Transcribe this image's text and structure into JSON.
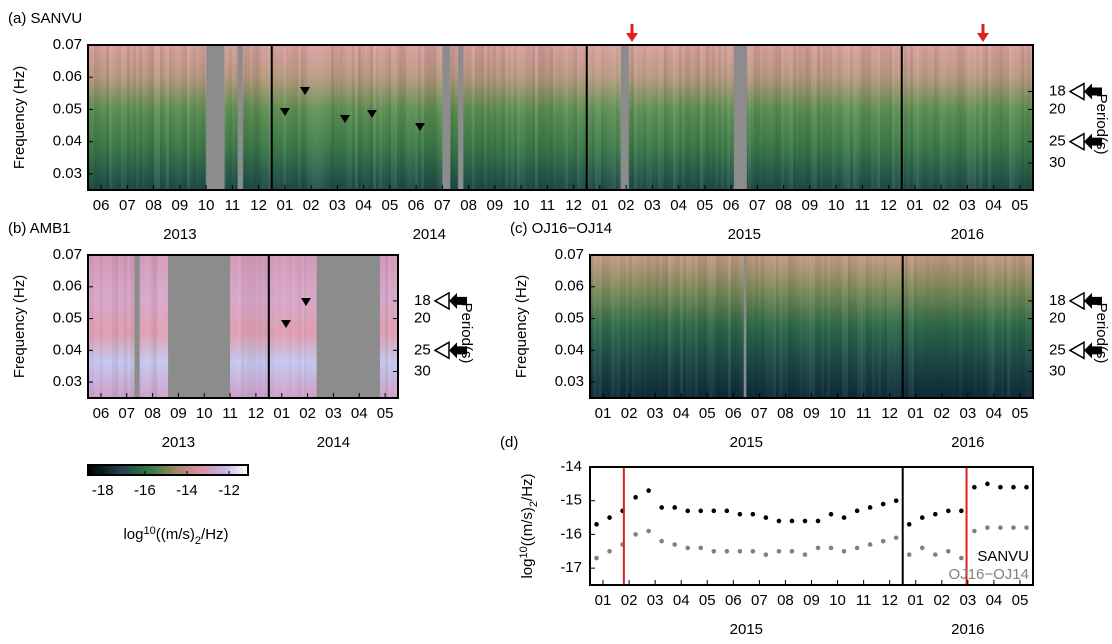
{
  "chart_data": [
    {
      "type": "spectrogram",
      "title": "(a) SANVU",
      "ylabel": "Frequency (Hz)",
      "ylim": [
        0.025,
        0.07
      ],
      "yticks": [
        0.03,
        0.04,
        0.05,
        0.06,
        0.07
      ],
      "y2label": "Period(s)",
      "y2ticks": [
        18,
        20,
        25,
        30
      ],
      "x_groups": [
        {
          "year": "2013",
          "months": [
            "06",
            "07",
            "08",
            "09",
            "10",
            "11",
            "12"
          ]
        },
        {
          "year": "2014",
          "months": [
            "01",
            "02",
            "03",
            "04",
            "05",
            "06",
            "07",
            "08",
            "09",
            "10",
            "11",
            "12"
          ]
        },
        {
          "year": "2015",
          "months": [
            "01",
            "02",
            "03",
            "04",
            "05",
            "06",
            "07",
            "08",
            "09",
            "10",
            "11",
            "12"
          ]
        },
        {
          "year": "2016",
          "months": [
            "01",
            "02",
            "03",
            "04",
            "05"
          ]
        }
      ]
    },
    {
      "type": "spectrogram",
      "title": "(b) AMB1",
      "ylabel": "Frequency (Hz)",
      "ylim": [
        0.025,
        0.07
      ],
      "yticks": [
        0.03,
        0.04,
        0.05,
        0.06,
        0.07
      ],
      "y2label": "Period(s)",
      "y2ticks": [
        18,
        20,
        25,
        30
      ],
      "x_groups": [
        {
          "year": "2013",
          "months": [
            "06",
            "07",
            "08",
            "09",
            "10",
            "11",
            "12"
          ]
        },
        {
          "year": "2014",
          "months": [
            "01",
            "02",
            "03",
            "04",
            "05"
          ]
        }
      ]
    },
    {
      "type": "spectrogram",
      "title": "(c) OJ16−OJ14",
      "ylabel": "Frequency (Hz)",
      "ylim": [
        0.025,
        0.07
      ],
      "yticks": [
        0.03,
        0.04,
        0.05,
        0.06,
        0.07
      ],
      "y2label": "Period(s)",
      "y2ticks": [
        18,
        20,
        25,
        30
      ],
      "x_groups": [
        {
          "year": "2015",
          "months": [
            "01",
            "02",
            "03",
            "04",
            "05",
            "06",
            "07",
            "08",
            "09",
            "10",
            "11",
            "12"
          ]
        },
        {
          "year": "2016",
          "months": [
            "01",
            "02",
            "03",
            "04",
            "05"
          ]
        }
      ]
    },
    {
      "type": "colorbar",
      "clim": [
        -18.7,
        -11.1
      ],
      "ticks": [
        -18,
        -16,
        -14,
        -12
      ],
      "label_parts": [
        "log",
        "10",
        "((m/s)",
        "2",
        "/Hz)"
      ]
    },
    {
      "type": "scatter",
      "title": "(d)",
      "ylabel_parts": [
        "log",
        "10",
        "((m/s)",
        "2",
        "/Hz)"
      ],
      "ylim": [
        -17.5,
        -14
      ],
      "yticks": [
        -14,
        -15,
        -16,
        -17
      ],
      "xlim": [
        0,
        17
      ],
      "x_groups": [
        {
          "year": "2015",
          "months": [
            "01",
            "02",
            "03",
            "04",
            "05",
            "06",
            "07",
            "08",
            "09",
            "10",
            "11",
            "12"
          ]
        },
        {
          "year": "2016",
          "months": [
            "01",
            "02",
            "03",
            "04",
            "05"
          ]
        }
      ],
      "vlines": [
        1.3,
        14.45
      ],
      "vline_color": "#e02020",
      "x": [
        0.25,
        0.75,
        1.25,
        1.75,
        2.25,
        2.75,
        3.25,
        3.75,
        4.25,
        4.75,
        5.25,
        5.75,
        6.25,
        6.75,
        7.25,
        7.75,
        8.25,
        8.75,
        9.25,
        9.75,
        10.25,
        10.75,
        11.25,
        11.75,
        12.25,
        12.75,
        13.25,
        13.75,
        14.25,
        14.75,
        15.25,
        15.75,
        16.25,
        16.75
      ],
      "series": [
        {
          "name": "SANVU",
          "color": "#000000",
          "values": [
            -15.7,
            -15.5,
            -15.3,
            -14.9,
            -14.7,
            -15.2,
            -15.2,
            -15.3,
            -15.3,
            -15.3,
            -15.3,
            -15.4,
            -15.4,
            -15.5,
            -15.6,
            -15.6,
            -15.6,
            -15.6,
            -15.4,
            -15.5,
            -15.3,
            -15.2,
            -15.1,
            -15.0,
            -15.7,
            -15.5,
            -15.4,
            -15.3,
            -15.3,
            -14.6,
            -14.5,
            -14.6,
            -14.6,
            -14.6
          ]
        },
        {
          "name": "OJ16−OJ14",
          "color": "#808080",
          "values": [
            -16.7,
            -16.5,
            -16.3,
            -16.0,
            -15.9,
            -16.2,
            -16.3,
            -16.4,
            -16.4,
            -16.5,
            -16.5,
            -16.5,
            -16.5,
            -16.6,
            -16.5,
            -16.5,
            -16.6,
            -16.4,
            -16.4,
            -16.5,
            -16.4,
            -16.3,
            -16.2,
            -16.1,
            -16.6,
            -16.4,
            -16.6,
            -16.5,
            -16.7,
            -15.9,
            -15.8,
            -15.8,
            -15.8,
            -15.8
          ]
        }
      ]
    }
  ]
}
